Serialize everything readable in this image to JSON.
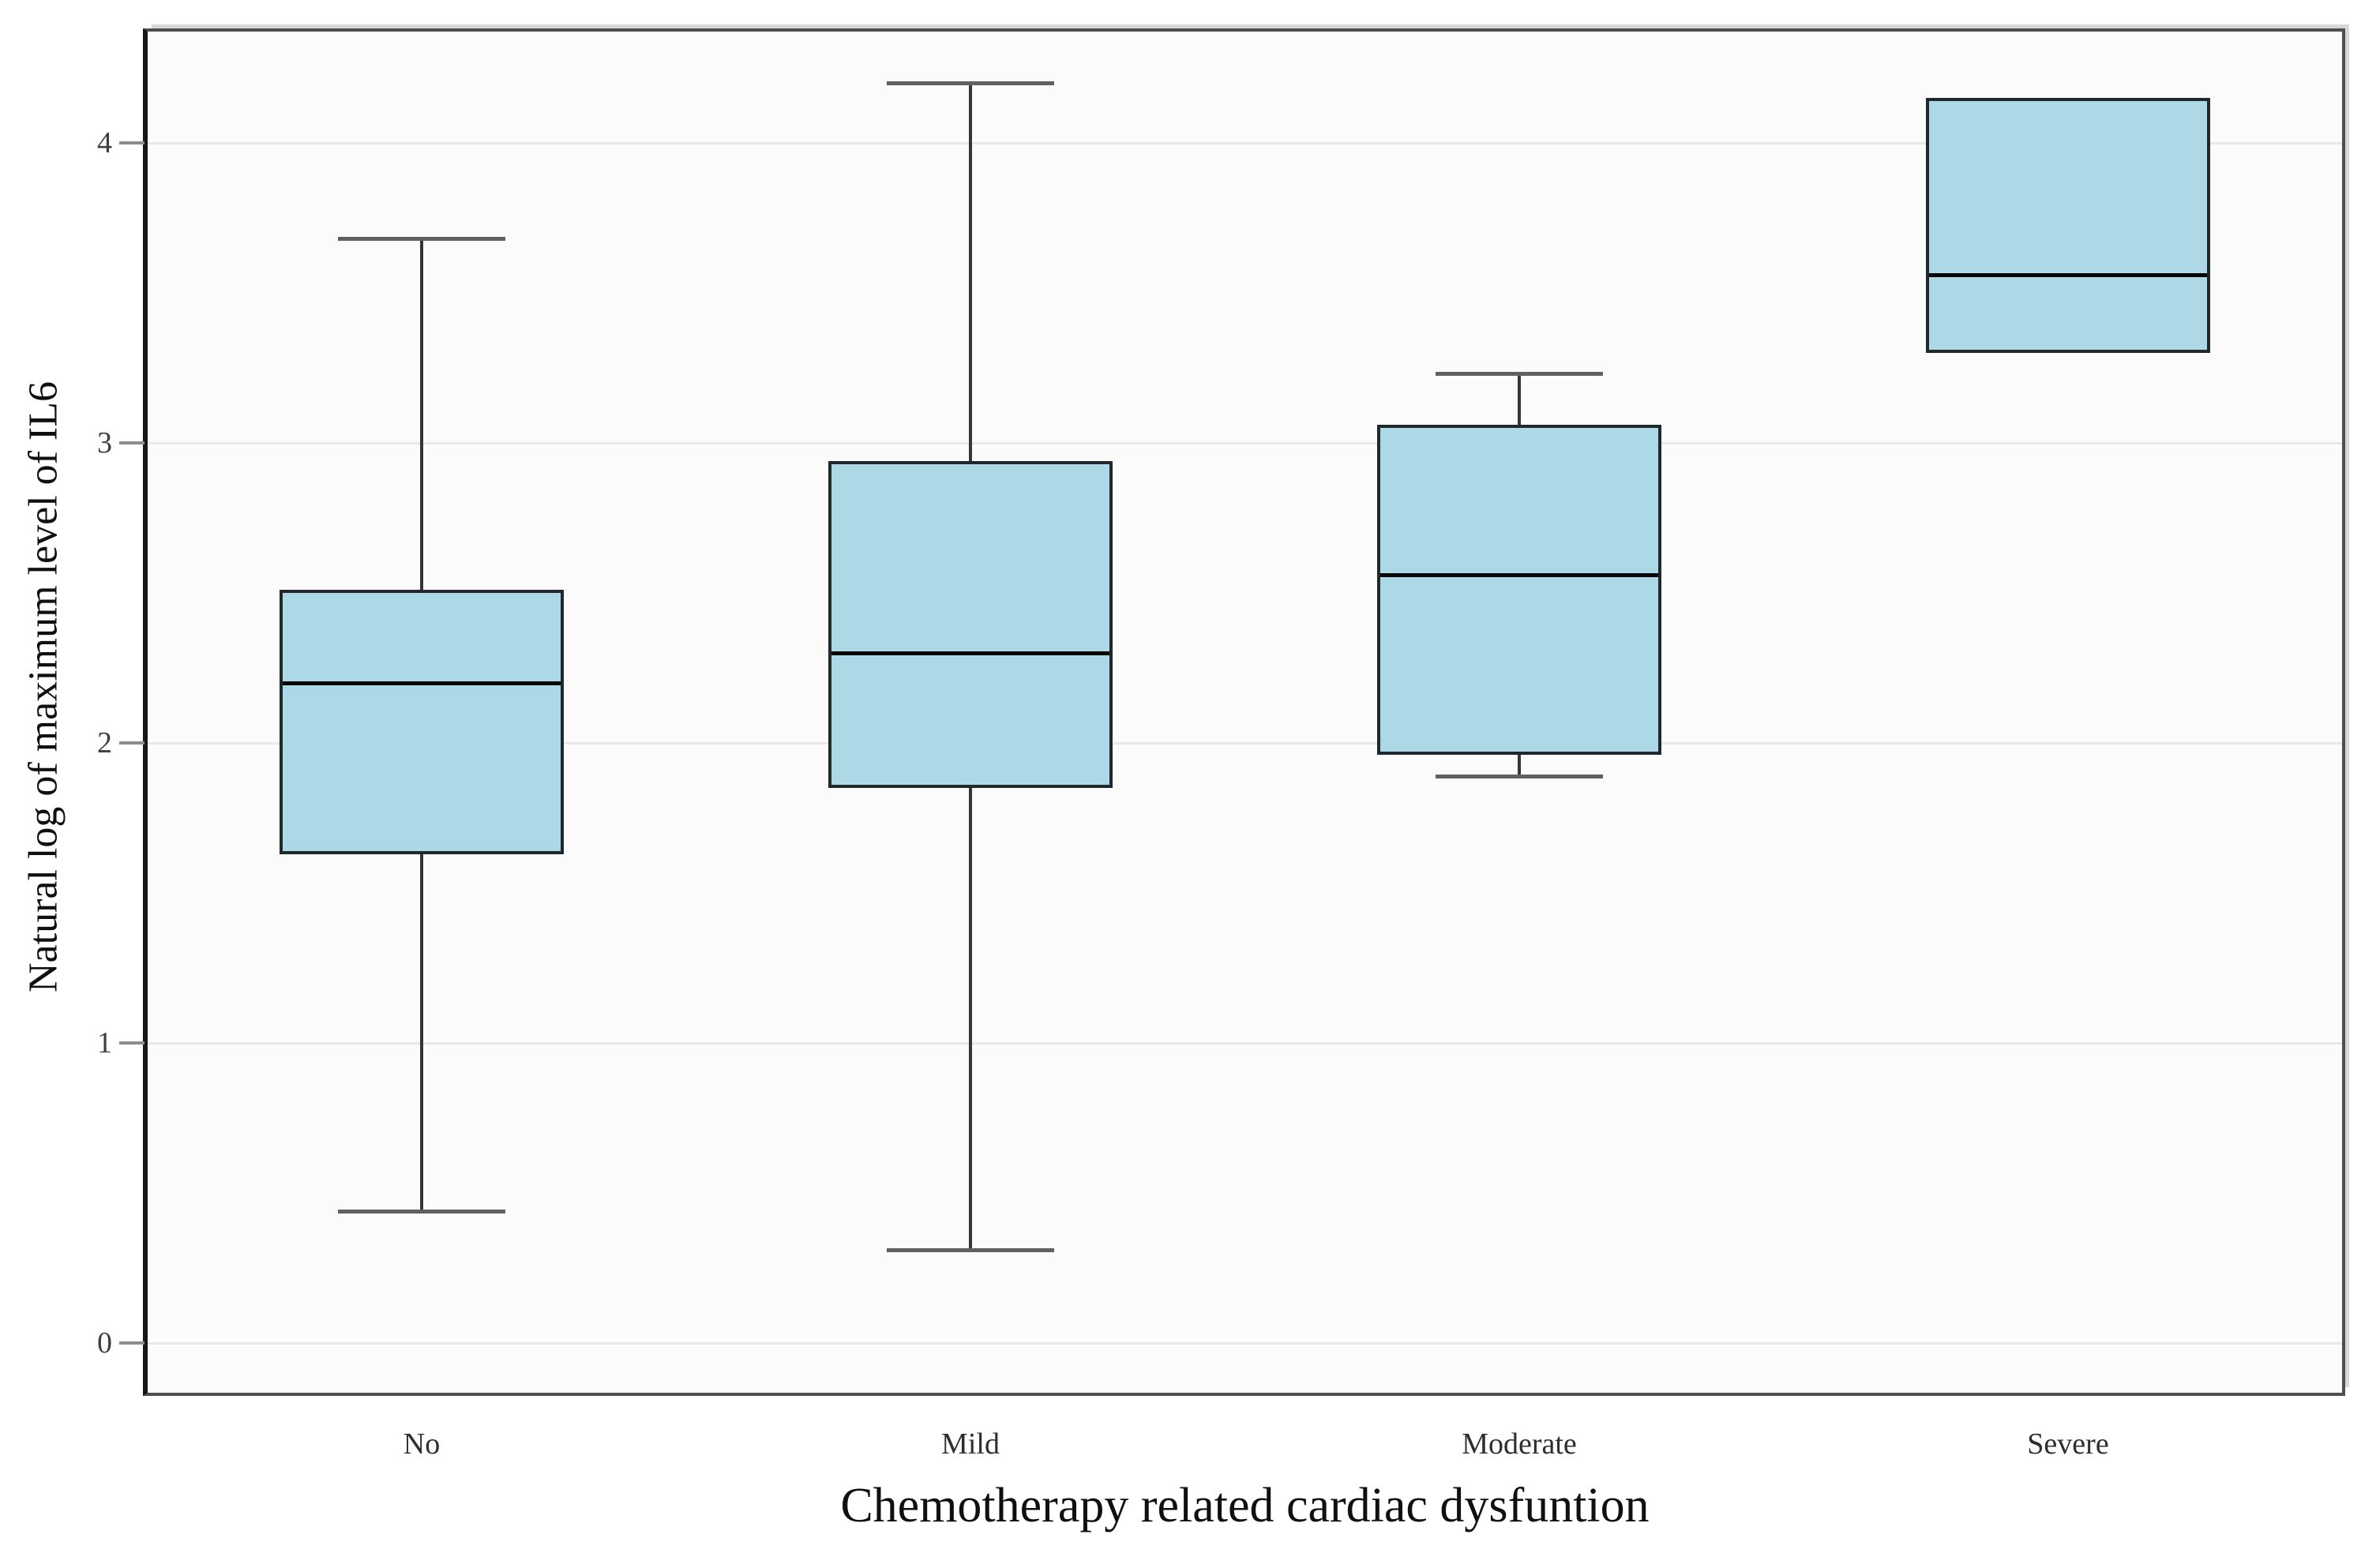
{
  "chart_data": {
    "type": "boxplot",
    "title": "",
    "xlabel": "Chemotherapy related cardiac dysfuntion",
    "ylabel": "Natural log of maximum level of IL6",
    "categories": [
      "No",
      "Mild",
      "Moderate",
      "Severe"
    ],
    "boxes": [
      {
        "category": "No",
        "whisker_low": 0.44,
        "q1": 1.63,
        "median": 2.2,
        "q3": 2.51,
        "whisker_high": 3.68
      },
      {
        "category": "Mild",
        "whisker_low": 0.31,
        "q1": 1.85,
        "median": 2.3,
        "q3": 2.94,
        "whisker_high": 4.2
      },
      {
        "category": "Moderate",
        "whisker_low": 1.89,
        "q1": 1.96,
        "median": 2.56,
        "q3": 3.06,
        "whisker_high": 3.23
      },
      {
        "category": "Severe",
        "whisker_low": null,
        "q1": 3.3,
        "median": 3.56,
        "q3": 4.15,
        "whisker_high": null
      }
    ],
    "y_ticks": [
      "0",
      "1",
      "2",
      "3",
      "4"
    ],
    "ylim": [
      -0.165,
      4.37
    ],
    "grid": "horizontal-only",
    "legend": "none",
    "colors": {
      "box_fill": "#ADD8E6",
      "box_border": "#20282c",
      "median_line": "#060606",
      "whisker_stem": "#353535",
      "whisker_cap": "#606060",
      "gridline": "#e8e8e8",
      "panel_background": "#fbfbfb",
      "panel_border": "#4f4f4f",
      "axis_left_border": "#161616",
      "tick_mark": "#8c8c8c"
    }
  }
}
